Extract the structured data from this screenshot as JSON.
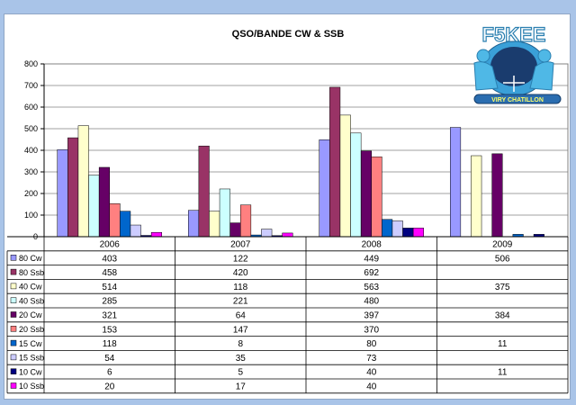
{
  "chart_data": {
    "type": "bar",
    "title": "QSO/BANDE CW & SSB",
    "categories": [
      "2006",
      "2007",
      "2008",
      "2009"
    ],
    "ylim": [
      0,
      800
    ],
    "yticks": [
      0,
      100,
      200,
      300,
      400,
      500,
      600,
      700,
      800
    ],
    "grid": true,
    "legend": "data table",
    "series": [
      {
        "name": "80 Cw",
        "color": "#9999ff",
        "values": [
          403,
          122,
          449,
          506
        ]
      },
      {
        "name": "80 Ssb",
        "color": "#993366",
        "values": [
          458,
          420,
          692,
          null
        ]
      },
      {
        "name": "40 Cw",
        "color": "#ffffcc",
        "values": [
          514,
          118,
          563,
          375
        ]
      },
      {
        "name": "40 Ssb",
        "color": "#ccffff",
        "values": [
          285,
          221,
          480,
          null
        ]
      },
      {
        "name": "20 Cw",
        "color": "#660066",
        "values": [
          321,
          64,
          397,
          384
        ]
      },
      {
        "name": "20 Ssb",
        "color": "#ff8080",
        "values": [
          153,
          147,
          370,
          null
        ]
      },
      {
        "name": "15 Cw",
        "color": "#0066cc",
        "values": [
          118,
          8,
          80,
          11
        ]
      },
      {
        "name": "15 Ssb",
        "color": "#ccccff",
        "values": [
          54,
          35,
          73,
          null
        ]
      },
      {
        "name": "10 Cw",
        "color": "#000080",
        "values": [
          6,
          5,
          40,
          11
        ]
      },
      {
        "name": "10 Ssb",
        "color": "#ff00ff",
        "values": [
          20,
          17,
          40,
          null
        ]
      }
    ]
  },
  "logo": {
    "callsign": "F5KEE",
    "subtitle": "VIRY CHATILLON"
  }
}
